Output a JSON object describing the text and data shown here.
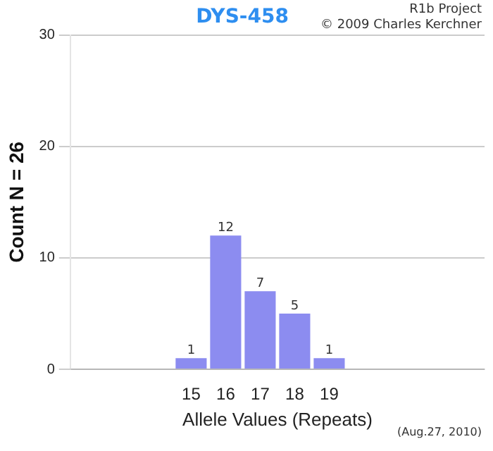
{
  "chart_data": {
    "type": "bar",
    "title": "DYS-458",
    "xlabel": "Allele Values (Repeats)",
    "ylabel": "Count N = 26",
    "categories": [
      null,
      null,
      null,
      "15",
      "16",
      "17",
      "18",
      "19",
      null,
      null,
      null,
      null
    ],
    "values": [
      null,
      null,
      null,
      1,
      12,
      7,
      5,
      1,
      null,
      null,
      null,
      null
    ],
    "color": "#8c8cf0",
    "ylim": [
      0,
      30
    ],
    "yticks": [
      0,
      10,
      20,
      30
    ],
    "grid": "y",
    "data_labels": true,
    "annotations": [
      "R1b Project",
      "© 2009 Charles Kerchner",
      "(Aug.27, 2010)"
    ]
  }
}
